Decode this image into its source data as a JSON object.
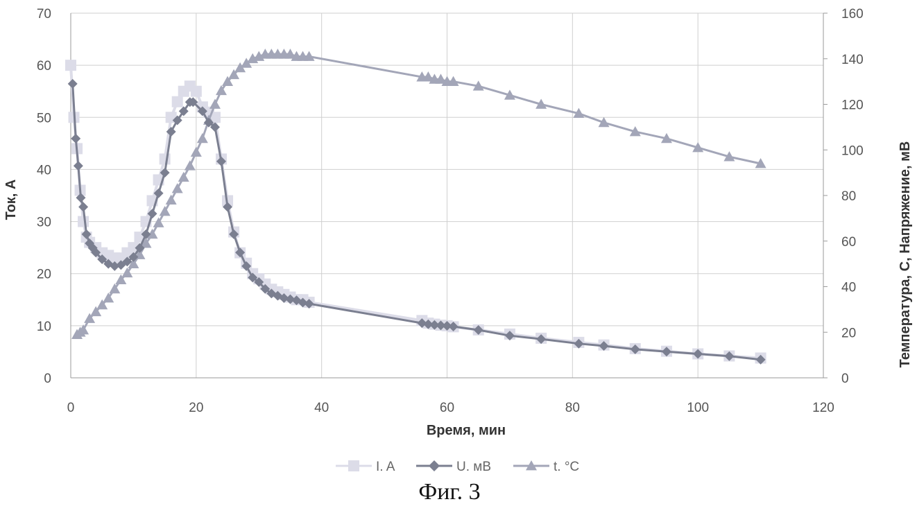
{
  "chart_data": {
    "type": "line",
    "caption": "Фиг. 3",
    "xlabel": "Время, мин",
    "ylabel": "Ток, А",
    "y2label": "Температура, С, Напряжение, мВ",
    "xlim": [
      0,
      120
    ],
    "xticks": [
      0,
      20,
      40,
      60,
      80,
      100,
      120
    ],
    "ylim": [
      0,
      70
    ],
    "yticks": [
      0,
      10,
      20,
      30,
      40,
      50,
      60,
      70
    ],
    "y2lim": [
      0,
      160
    ],
    "y2ticks": [
      0,
      20,
      40,
      60,
      80,
      100,
      120,
      140,
      160
    ],
    "grid": true,
    "legend_position": "bottom",
    "series": [
      {
        "name": "I. A",
        "axis": "left",
        "marker": "square",
        "color": "#dcdce8",
        "x": [
          0,
          0.5,
          1,
          1.5,
          2,
          2.5,
          3,
          4,
          5,
          6,
          7,
          8,
          9,
          10,
          11,
          12,
          13,
          14,
          15,
          16,
          17,
          18,
          19,
          20,
          21,
          22,
          23,
          24,
          25,
          26,
          27,
          28,
          29,
          30,
          31,
          32,
          33,
          34,
          35,
          36,
          37,
          38,
          56,
          57,
          58,
          59,
          60,
          61,
          65,
          70,
          75,
          81,
          85,
          90,
          95,
          100,
          105,
          110
        ],
        "y": [
          60,
          50,
          44,
          36,
          30,
          27,
          26,
          25,
          24,
          23.5,
          23,
          23,
          24,
          25,
          27,
          30,
          34,
          38,
          42,
          50,
          53,
          55,
          56,
          55,
          52,
          51,
          50,
          42,
          34,
          28,
          24,
          22,
          20,
          19,
          18,
          17,
          16.5,
          16,
          15.5,
          15,
          15,
          14.5,
          11,
          10.5,
          10.3,
          10.1,
          10,
          9.8,
          9.2,
          8.4,
          7.6,
          6.8,
          6.3,
          5.6,
          5.1,
          4.6,
          4.2,
          3.8
        ]
      },
      {
        "name": "U. мВ",
        "axis": "right",
        "marker": "diamond",
        "color": "#7b7f90",
        "x": [
          0.3,
          0.8,
          1.2,
          1.6,
          2,
          2.5,
          3,
          3.5,
          4,
          5,
          6,
          7,
          8,
          9,
          10,
          11,
          12,
          13,
          14,
          15,
          16,
          17,
          18,
          19,
          19.5,
          21,
          22,
          23,
          24,
          25,
          26,
          27,
          28,
          29,
          30,
          31,
          32,
          33,
          34,
          35,
          36,
          37,
          38,
          56,
          57,
          58,
          59,
          60,
          61,
          65,
          70,
          75,
          81,
          85,
          90,
          95,
          100,
          105,
          110
        ],
        "y": [
          129,
          105,
          93,
          79,
          75,
          63,
          59,
          57,
          55,
          52,
          50,
          49,
          49.5,
          51,
          53,
          57,
          63,
          72,
          81,
          90,
          108,
          113,
          117,
          121,
          121,
          117,
          112,
          110,
          95,
          75,
          63,
          55,
          49,
          44,
          42,
          39,
          37,
          36,
          35,
          34.5,
          34,
          33,
          32.5,
          24,
          23.5,
          23.2,
          23,
          22.8,
          22.5,
          21,
          18.5,
          17,
          15,
          14,
          12.5,
          11.5,
          10.5,
          9.5,
          8
        ]
      },
      {
        "name": "t. °C",
        "axis": "right",
        "marker": "triangle",
        "color": "#a3a6b8",
        "x": [
          1,
          1.5,
          2,
          3,
          4,
          5,
          6,
          7,
          8,
          9,
          10,
          11,
          12,
          13,
          14,
          15,
          16,
          17,
          18,
          19,
          20,
          21,
          22,
          23,
          24,
          25,
          26,
          27,
          28,
          29,
          30,
          31,
          32,
          33,
          34,
          35,
          36,
          37,
          38,
          56,
          57,
          58,
          59,
          60,
          61,
          65,
          70,
          75,
          81,
          85,
          90,
          95,
          100,
          105,
          110
        ],
        "y": [
          19,
          20,
          21,
          26,
          29,
          32,
          35,
          39,
          43,
          46,
          50,
          54,
          59,
          63,
          68,
          73,
          78,
          83,
          88,
          93,
          99,
          105,
          113,
          120,
          126,
          130,
          133,
          136,
          138,
          140,
          141,
          142,
          142,
          142,
          142,
          142,
          141,
          141,
          141,
          132,
          132,
          131,
          131,
          130,
          130,
          128,
          124,
          120,
          116,
          112,
          108,
          105,
          101,
          97,
          94
        ]
      }
    ]
  }
}
